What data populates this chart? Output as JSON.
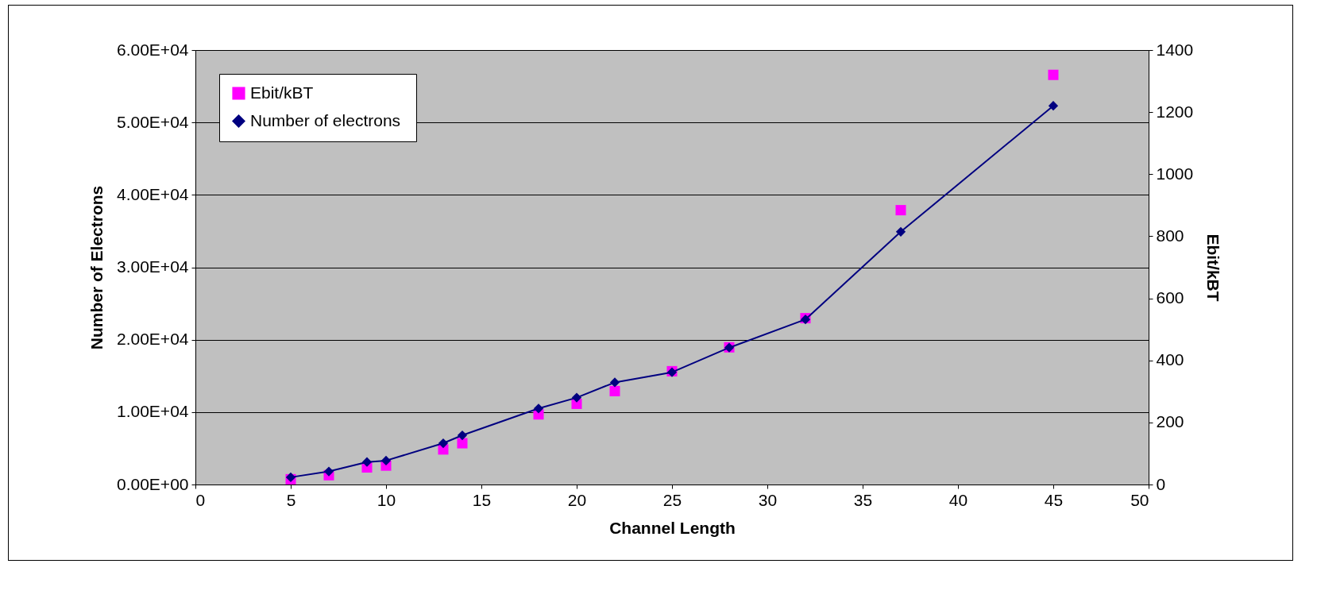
{
  "chart_data": {
    "type": "line",
    "xlabel": "Channel Length",
    "ylabel": "Number of Electrons",
    "y2label": "Ebit/kBT",
    "x": [
      5,
      7,
      9,
      10,
      13,
      14,
      18,
      20,
      22,
      25,
      28,
      32,
      37,
      45
    ],
    "series": [
      {
        "name": "Ebit/kBT",
        "type": "scatter",
        "axis": "y2",
        "marker": "square",
        "color": "#ff00ff",
        "values": [
          17,
          30,
          55,
          61,
          113,
          133,
          226,
          260,
          301,
          365,
          442,
          536,
          884,
          1320
        ]
      },
      {
        "name": "Number of  electrons",
        "marker": "diamond",
        "color": "#000080",
        "values": [
          1000,
          1800,
          3100,
          3300,
          5700,
          6800,
          10500,
          12000,
          14100,
          15500,
          18900,
          22800,
          34900,
          52300
        ]
      }
    ],
    "xlim": [
      0,
      50
    ],
    "xticks": [
      0,
      5,
      10,
      15,
      20,
      25,
      30,
      35,
      40,
      45,
      50
    ],
    "ylim": [
      0,
      60000
    ],
    "yticks": [
      {
        "value": 0,
        "label": "0.00E+00"
      },
      {
        "value": 10000,
        "label": "1.00E+04"
      },
      {
        "value": 20000,
        "label": "2.00E+04"
      },
      {
        "value": 30000,
        "label": "3.00E+04"
      },
      {
        "value": 40000,
        "label": "4.00E+04"
      },
      {
        "value": 50000,
        "label": "5.00E+04"
      },
      {
        "value": 60000,
        "label": "6.00E+04"
      }
    ],
    "y2lim": [
      0,
      1400
    ],
    "y2ticks": [
      0,
      200,
      400,
      600,
      800,
      1000,
      1200,
      1400
    ],
    "grid": "y",
    "legend": "top left"
  }
}
